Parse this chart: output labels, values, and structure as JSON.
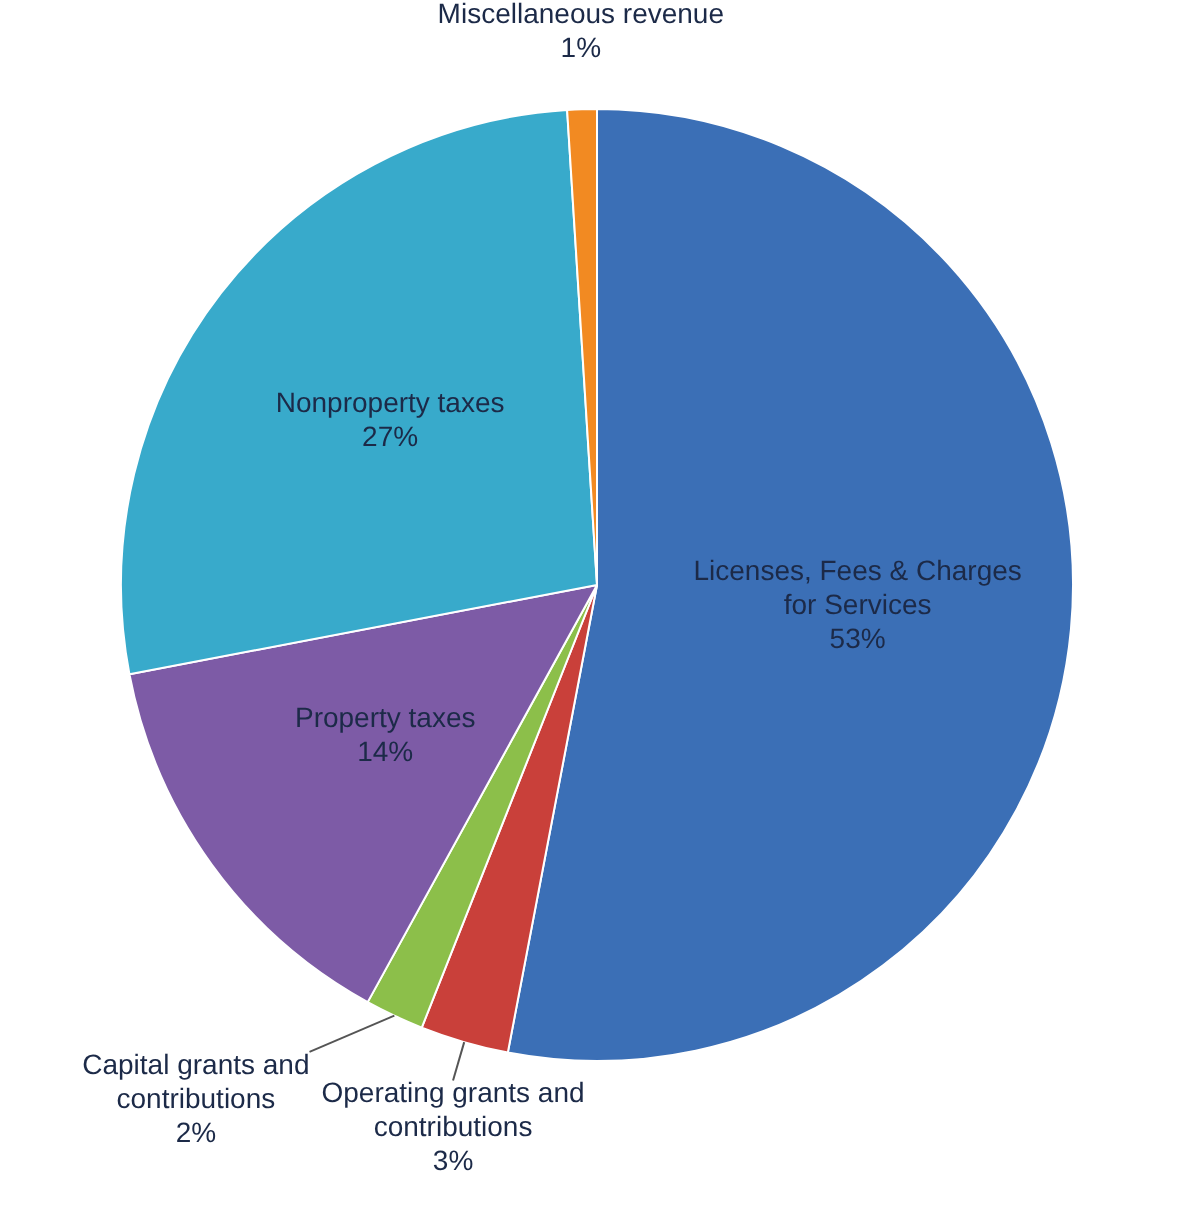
{
  "chart_data": {
    "type": "pie",
    "categories": [
      "Licenses, Fees & Charges for Services",
      "Operating grants and contributions",
      "Capital grants and contributions",
      "Property taxes",
      "Nonproperty taxes",
      "Miscellaneous revenue"
    ],
    "values": [
      53,
      3,
      2,
      14,
      27,
      1
    ],
    "value_labels": [
      "53%",
      "3%",
      "2%",
      "14%",
      "27%",
      "1%"
    ],
    "colors": [
      "#3b6fb6",
      "#c9403a",
      "#8cbf4a",
      "#7d5ba6",
      "#38aacb",
      "#f28a22"
    ],
    "legend": false
  }
}
